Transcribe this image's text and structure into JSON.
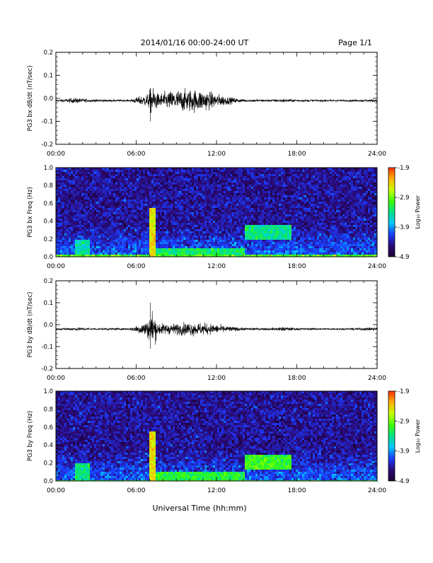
{
  "header": {
    "title": "2014/01/16  00:00-24:00 UT",
    "page": "Page 1/1"
  },
  "footer": {
    "xlabel": "Universal Time (hh:mm)"
  },
  "time_ticks": [
    "00:00",
    "06:00",
    "12:00",
    "18:00",
    "24:00"
  ],
  "colors": {
    "background": "#ffffff",
    "axis": "#000000",
    "trace": "#000000",
    "colorbar": [
      "#1a0030",
      "#2b0a78",
      "#1a3cff",
      "#00c8ff",
      "#00e08a",
      "#40ff00",
      "#c8ff00",
      "#ffb000",
      "#ff3000"
    ]
  },
  "chart_data": [
    {
      "type": "line",
      "ylabel": "PG3 bx dB/dt (nT/sec)",
      "xlim": [
        0,
        24
      ],
      "ylim": [
        -0.2,
        0.2
      ],
      "yticks": [
        "0.2",
        "0.1",
        "0.0",
        "-0.1",
        "-0.2"
      ],
      "x_tick_labels": [
        "00:00",
        "06:00",
        "12:00",
        "18:00",
        "24:00"
      ],
      "series": [
        {
          "baseline": -0.01,
          "envelope_hours": [
            0,
            1.5,
            2.5,
            5.5,
            6.9,
            7.2,
            7.6,
            8.0,
            9.0,
            10.0,
            11.0,
            12.0,
            13.0,
            14.0,
            16.0,
            17.0,
            18.0,
            20.0,
            22.0,
            24.0
          ],
          "envelope_amplitude": [
            0.004,
            0.012,
            0.006,
            0.004,
            0.03,
            0.07,
            0.03,
            0.035,
            0.045,
            0.05,
            0.045,
            0.03,
            0.015,
            0.006,
            0.005,
            0.008,
            0.005,
            0.004,
            0.004,
            0.006
          ],
          "max": 0.045,
          "min": -0.1
        }
      ]
    },
    {
      "type": "heatmap",
      "ylabel": "PG3 bx Freq (Hz)",
      "xlim": [
        0,
        24
      ],
      "ylim": [
        0.0,
        1.0
      ],
      "yticks": [
        "1.0",
        "0.8",
        "0.6",
        "0.4",
        "0.2",
        "0.0"
      ],
      "x_tick_labels": [
        "00:00",
        "06:00",
        "12:00",
        "18:00",
        "24:00"
      ],
      "colorbar": {
        "label": "Log₁₀ Power",
        "range": [
          -4.9,
          -1.9
        ],
        "ticks": [
          "-1.9",
          "-2.9",
          "-3.9",
          "-4.9"
        ]
      },
      "features": [
        {
          "time_range": [
            6.9,
            7.4
          ],
          "freq_range": [
            0.0,
            0.55
          ],
          "level": -2.5
        },
        {
          "time_range": [
            1.5,
            2.5
          ],
          "freq_range": [
            0.0,
            0.2
          ],
          "level": -3.5
        },
        {
          "time_range": [
            7.5,
            14.0
          ],
          "freq_range": [
            0.0,
            0.1
          ],
          "level": -3.3
        },
        {
          "time_range": [
            14.0,
            17.5
          ],
          "freq_range": [
            0.2,
            0.35
          ],
          "level": -3.4
        }
      ]
    },
    {
      "type": "line",
      "ylabel": "PG3 by dB/dt (nT/sec)",
      "xlim": [
        0,
        24
      ],
      "ylim": [
        -0.2,
        0.2
      ],
      "yticks": [
        "0.2",
        "0.1",
        "0.0",
        "-0.1",
        "-0.2"
      ],
      "x_tick_labels": [
        "00:00",
        "06:00",
        "12:00",
        "18:00",
        "24:00"
      ],
      "series": [
        {
          "baseline": -0.02,
          "envelope_hours": [
            0,
            1.5,
            2.5,
            5.5,
            6.9,
            7.2,
            7.6,
            8.0,
            9.0,
            10.0,
            11.0,
            12.0,
            13.0,
            14.0,
            16.0,
            17.0,
            18.0,
            20.0,
            22.0,
            24.0
          ],
          "envelope_amplitude": [
            0.004,
            0.008,
            0.005,
            0.004,
            0.04,
            0.09,
            0.03,
            0.025,
            0.025,
            0.03,
            0.028,
            0.02,
            0.012,
            0.006,
            0.005,
            0.01,
            0.005,
            0.004,
            0.004,
            0.008
          ],
          "max": 0.1,
          "min": -0.11
        }
      ]
    },
    {
      "type": "heatmap",
      "ylabel": "PG3 by Freq (Hz)",
      "xlim": [
        0,
        24
      ],
      "ylim": [
        0.0,
        1.0
      ],
      "yticks": [
        "1.0",
        "0.8",
        "0.6",
        "0.4",
        "0.2",
        "0.0"
      ],
      "x_tick_labels": [
        "00:00",
        "06:00",
        "12:00",
        "18:00",
        "24:00"
      ],
      "colorbar": {
        "label": "Log₁₀ Power",
        "range": [
          -4.9,
          -1.9
        ],
        "ticks": [
          "-1.9",
          "-2.9",
          "-3.9",
          "-4.9"
        ]
      },
      "features": [
        {
          "time_range": [
            6.9,
            7.4
          ],
          "freq_range": [
            0.0,
            0.55
          ],
          "level": -2.5
        },
        {
          "time_range": [
            1.5,
            2.5
          ],
          "freq_range": [
            0.0,
            0.22
          ],
          "level": -3.4
        },
        {
          "time_range": [
            7.5,
            14.0
          ],
          "freq_range": [
            0.0,
            0.12
          ],
          "level": -3.2
        },
        {
          "time_range": [
            14.0,
            17.5
          ],
          "freq_range": [
            0.15,
            0.3
          ],
          "level": -3.1
        }
      ]
    }
  ]
}
